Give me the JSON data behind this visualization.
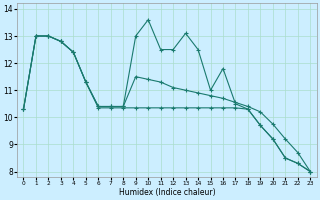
{
  "xlabel": "Humidex (Indice chaleur)",
  "bg_color": "#cceeff",
  "grid_color": "#aaddcc",
  "line_color": "#1a7a6e",
  "xlim": [
    -0.5,
    23.5
  ],
  "ylim": [
    7.8,
    14.2
  ],
  "yticks": [
    8,
    9,
    10,
    11,
    12,
    13,
    14
  ],
  "xticks": [
    0,
    1,
    2,
    3,
    4,
    5,
    6,
    7,
    8,
    9,
    10,
    11,
    12,
    13,
    14,
    15,
    16,
    17,
    18,
    19,
    20,
    21,
    22,
    23
  ],
  "series1_x": [
    0,
    1,
    2,
    3,
    4,
    5,
    6,
    7,
    8,
    9,
    10,
    11,
    12,
    13,
    14,
    15,
    16,
    17,
    18,
    19,
    20,
    21,
    22,
    23
  ],
  "series1_y": [
    10.3,
    13.0,
    13.0,
    12.8,
    12.4,
    11.3,
    10.4,
    10.4,
    10.4,
    13.0,
    13.6,
    12.5,
    12.5,
    13.1,
    12.5,
    11.0,
    11.8,
    10.5,
    10.3,
    9.7,
    9.2,
    8.5,
    8.3,
    8.0
  ],
  "series2_x": [
    0,
    1,
    2,
    3,
    4,
    5,
    6,
    7,
    8,
    9,
    10,
    11,
    12,
    13,
    14,
    15,
    16,
    17,
    18,
    19,
    20,
    21,
    22,
    23
  ],
  "series2_y": [
    10.3,
    13.0,
    13.0,
    12.8,
    12.4,
    11.3,
    10.35,
    10.35,
    10.35,
    10.35,
    10.35,
    10.35,
    10.35,
    10.35,
    10.35,
    10.35,
    10.35,
    10.35,
    10.3,
    9.7,
    9.2,
    8.5,
    8.3,
    8.0
  ],
  "series3_x": [
    0,
    1,
    2,
    3,
    4,
    5,
    6,
    7,
    8,
    9,
    10,
    11,
    12,
    13,
    14,
    15,
    16,
    17,
    18,
    19,
    20,
    21,
    22,
    23
  ],
  "series3_y": [
    10.3,
    13.0,
    13.0,
    12.8,
    12.4,
    11.3,
    10.4,
    10.4,
    10.4,
    11.5,
    11.4,
    11.3,
    11.1,
    11.0,
    10.9,
    10.8,
    10.7,
    10.55,
    10.4,
    10.2,
    9.75,
    9.2,
    8.7,
    8.0
  ]
}
